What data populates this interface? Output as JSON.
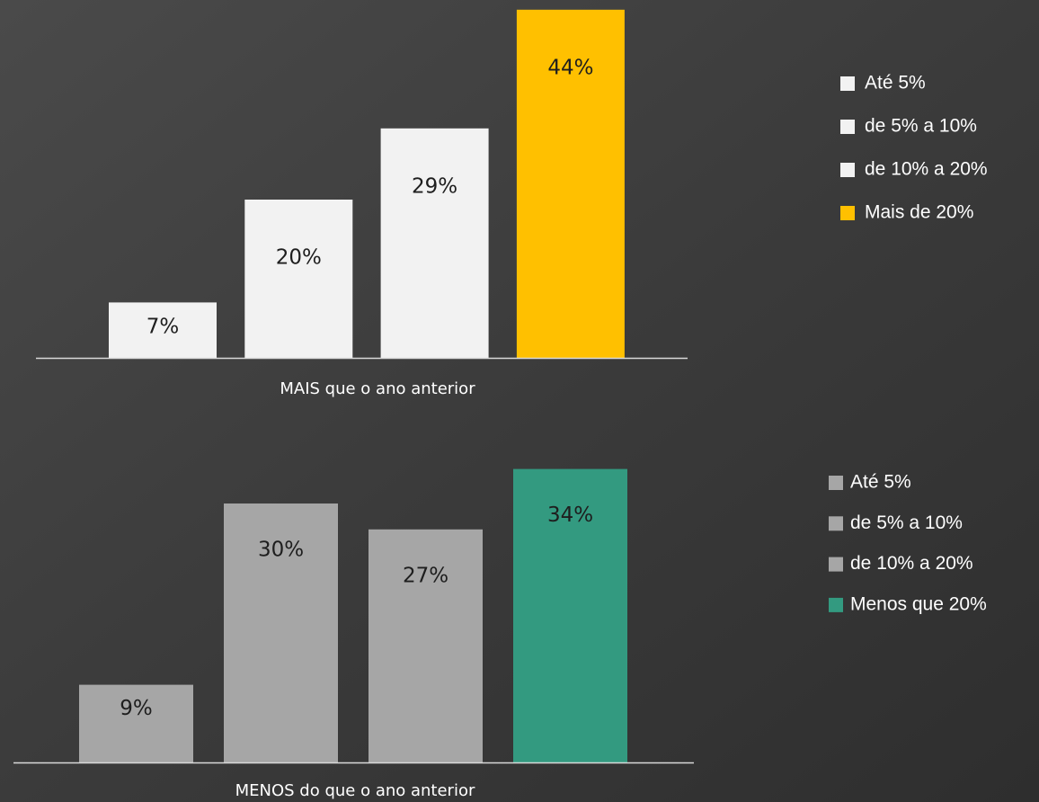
{
  "chart_data": [
    {
      "type": "bar",
      "categories": [
        "Até 5%",
        "de 5% a 10%",
        "de 10% a 20%",
        "Mais de 20%"
      ],
      "values": [
        7,
        20,
        29,
        44
      ],
      "value_labels": [
        "7%",
        "20%",
        "29%",
        "44%"
      ],
      "colors": [
        "#f2f2f2",
        "#f2f2f2",
        "#f2f2f2",
        "#ffc000"
      ],
      "xlabel": "MAIS que o ano anterior",
      "legend": "right"
    },
    {
      "type": "bar",
      "categories": [
        "Até 5%",
        "de 5% a 10%",
        "de 10% a 20%",
        "Menos que 20%"
      ],
      "values": [
        9,
        30,
        27,
        34
      ],
      "value_labels": [
        "9%",
        "30%",
        "27%",
        "34%"
      ],
      "colors": [
        "#a6a6a6",
        "#a6a6a6",
        "#a6a6a6",
        "#339a80"
      ],
      "xlabel": "MENOS do que o ano anterior",
      "legend": "right"
    }
  ]
}
